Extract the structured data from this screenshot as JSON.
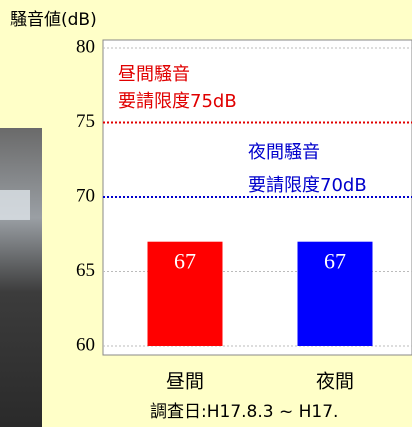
{
  "chart_data": {
    "type": "bar",
    "title": "騒音値(dB)",
    "categories": [
      "昼間",
      "夜間"
    ],
    "values": [
      67,
      67
    ],
    "colors": [
      "#ff0000",
      "#0000ff"
    ],
    "ylim": [
      60,
      80
    ],
    "yticks": [
      60,
      65,
      70,
      75,
      80
    ],
    "grid": true,
    "limits": [
      {
        "label": [
          "昼間騒音",
          "要請限度75dB"
        ],
        "value": 75,
        "color": "#e00000"
      },
      {
        "label": [
          "夜間騒音",
          "要請限度70dB"
        ],
        "value": 70,
        "color": "#0000cc"
      }
    ],
    "note": "調査日:H17.8.3 ~ H17."
  }
}
